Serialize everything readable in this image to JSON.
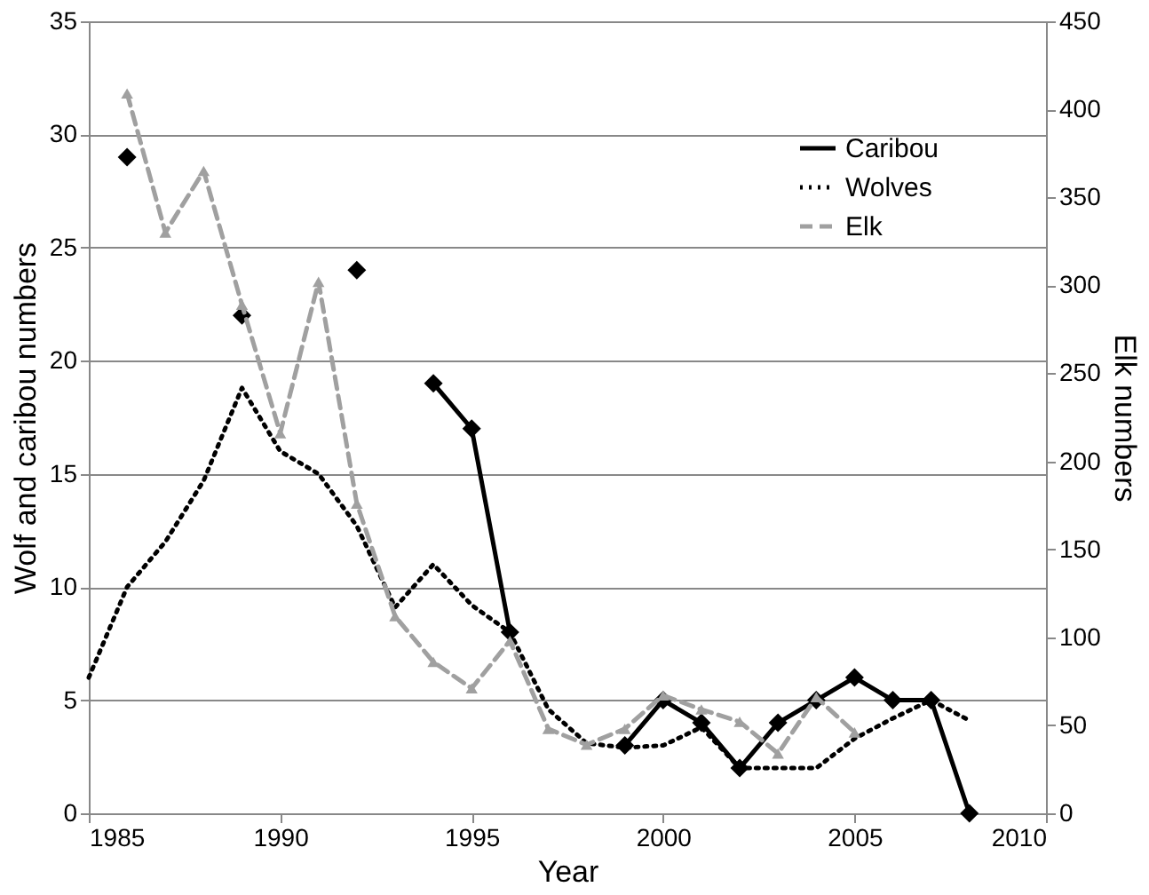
{
  "chart_data": {
    "type": "line",
    "xlabel": "Year",
    "ylabel": "Wolf and caribou numbers",
    "y2label": "Elk numbers",
    "x": [
      1985,
      1986,
      1987,
      1988,
      1989,
      1990,
      1991,
      1992,
      1993,
      1994,
      1995,
      1996,
      1997,
      1998,
      1999,
      2000,
      2001,
      2002,
      2003,
      2004,
      2005,
      2006,
      2007,
      2008
    ],
    "series": [
      {
        "name": "Caribou",
        "color": "#000000",
        "marker": "diamond",
        "line_style": "solid",
        "values": [
          null,
          29,
          null,
          null,
          22,
          null,
          null,
          24,
          null,
          19,
          17,
          8,
          null,
          null,
          3,
          5,
          4,
          2,
          4,
          5,
          6,
          5,
          5,
          0
        ]
      },
      {
        "name": "Wolves",
        "color": "#000000",
        "marker": "none",
        "line_style": "dotted",
        "values": [
          6,
          10,
          12,
          14.7,
          18.8,
          16,
          15,
          12.7,
          9.1,
          11,
          9.2,
          8,
          4.6,
          3.1,
          2.9,
          3,
          3.8,
          2,
          2,
          2,
          3.3,
          4.2,
          5,
          4.1
        ]
      },
      {
        "name": "Elk",
        "color": "#a0a0a0",
        "marker": "triangle",
        "line_style": "dashed",
        "axis": "y2",
        "values": [
          null,
          409,
          330,
          365,
          289,
          216,
          302,
          176,
          112,
          86,
          71,
          98,
          48,
          39,
          48,
          67,
          59,
          52,
          34,
          66,
          46,
          null,
          null,
          null
        ]
      }
    ],
    "xlim": [
      1985,
      2010
    ],
    "xticks": [
      1985,
      1990,
      1995,
      2000,
      2005,
      2010
    ],
    "ylim": [
      0,
      35
    ],
    "yticks": [
      0,
      5,
      10,
      15,
      20,
      25,
      30,
      35
    ],
    "y2lim": [
      0,
      450
    ],
    "y2ticks": [
      0,
      50,
      100,
      150,
      200,
      250,
      300,
      350,
      400,
      450
    ],
    "grid": "y",
    "legend": "top right"
  }
}
